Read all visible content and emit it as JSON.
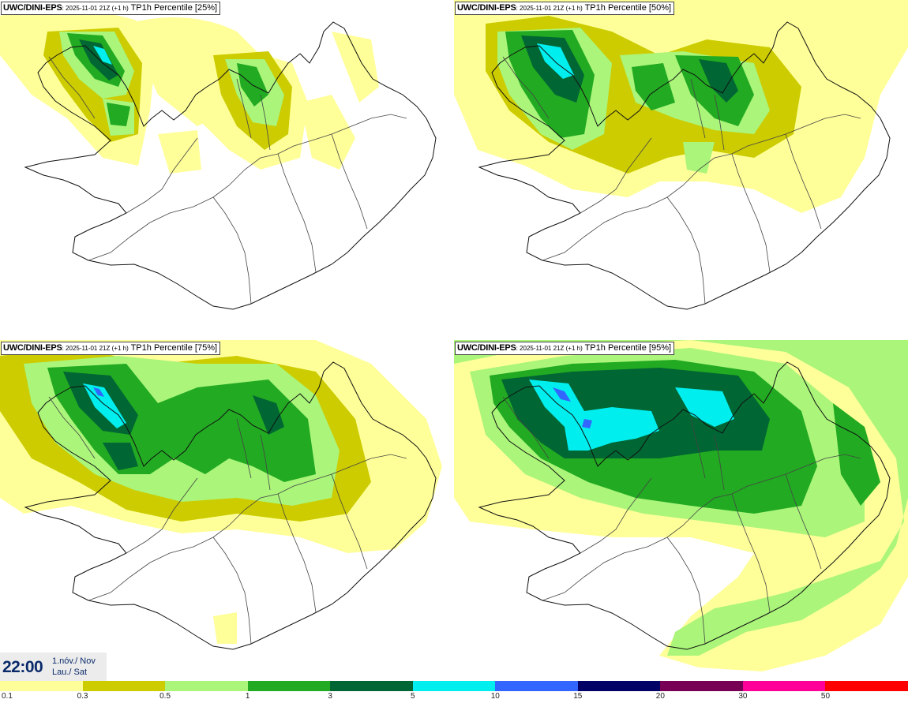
{
  "panels": [
    {
      "model": "UWC/DINI-EPS",
      "run": ": 2025-11-01 21Z (+1 h)",
      "param": " TP1h Percentile [25%]"
    },
    {
      "model": "UWC/DINI-EPS",
      "run": ": 2025-11-01 21Z (+1 h)",
      "param": " TP1h Percentile [50%]"
    },
    {
      "model": "UWC/DINI-EPS",
      "run": ": 2025-11-01 21Z (+1 h)",
      "param": " TP1h Percentile [75%]"
    },
    {
      "model": "UWC/DINI-EPS",
      "run": ": 2025-11-01 21Z (+1 h)",
      "param": " TP1h Percentile [95%]"
    }
  ],
  "time": {
    "clock": "22:00",
    "date_line1": "1.nóv./ Nov",
    "date_line2": "Lau./ Sat"
  },
  "legend": {
    "ticks": [
      "0.1",
      "0.3",
      "0.5",
      "1",
      "3",
      "5",
      "10",
      "15",
      "20",
      "30",
      "50"
    ],
    "colors": [
      "#ffff99",
      "#cccc00",
      "#aaf57a",
      "#22aa22",
      "#006633",
      "#00eeee",
      "#3366ff",
      "#000066",
      "#770055",
      "#ff0099",
      "#ff0000"
    ]
  }
}
